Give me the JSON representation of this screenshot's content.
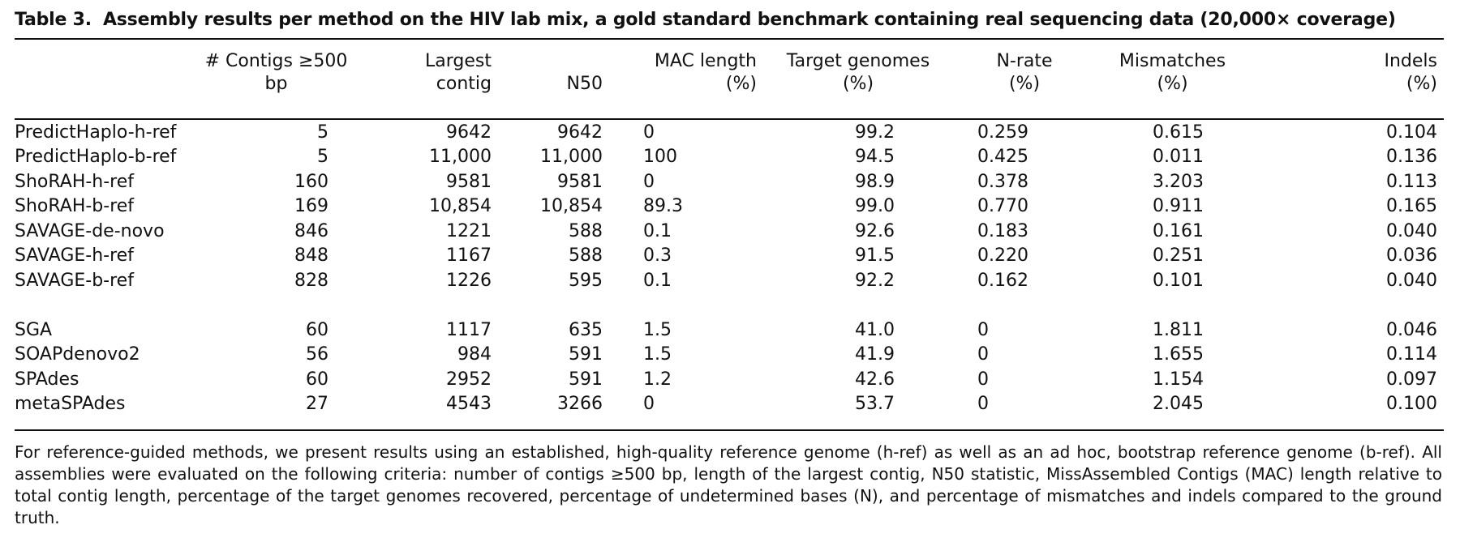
{
  "caption": {
    "label": "Table 3.",
    "text": "Assembly results per method on the HIV lab mix, a gold standard benchmark containing real sequencing data (20,000× coverage)"
  },
  "headers": [
    {
      "line1": "# Contigs ≥500",
      "line2": "bp"
    },
    {
      "line1": "Largest",
      "line2": "contig"
    },
    {
      "line1": "",
      "line2": "N50"
    },
    {
      "line1": "MAC length",
      "line2": "(%)"
    },
    {
      "line1": "Target genomes",
      "line2": "(%)"
    },
    {
      "line1": "N-rate",
      "line2": "(%)"
    },
    {
      "line1": "Mismatches",
      "line2": "(%)"
    },
    {
      "line1": "Indels",
      "line2": "(%)"
    }
  ],
  "groups": [
    {
      "rows": [
        {
          "method": "PredictHaplo-h-ref",
          "contigs": "5",
          "largest": "9642",
          "n50": "9642",
          "mac": "0",
          "target": "99.2",
          "nrate": "0.259",
          "mismatches": "0.615",
          "indels": "0.104"
        },
        {
          "method": "PredictHaplo-b-ref",
          "contigs": "5",
          "largest": "11,000",
          "n50": "11,000",
          "mac": "100",
          "target": "94.5",
          "nrate": "0.425",
          "mismatches": "0.011",
          "indels": "0.136"
        },
        {
          "method": "ShoRAH-h-ref",
          "contigs": "160",
          "largest": "9581",
          "n50": "9581",
          "mac": "0",
          "target": "98.9",
          "nrate": "0.378",
          "mismatches": "3.203",
          "indels": "0.113"
        },
        {
          "method": "ShoRAH-b-ref",
          "contigs": "169",
          "largest": "10,854",
          "n50": "10,854",
          "mac": "89.3",
          "target": "99.0",
          "nrate": "0.770",
          "mismatches": "0.911",
          "indels": "0.165"
        },
        {
          "method": "SAVAGE-de-novo",
          "contigs": "846",
          "largest": "1221",
          "n50": "588",
          "mac": "0.1",
          "target": "92.6",
          "nrate": "0.183",
          "mismatches": "0.161",
          "indels": "0.040"
        },
        {
          "method": "SAVAGE-h-ref",
          "contigs": "848",
          "largest": "1167",
          "n50": "588",
          "mac": "0.3",
          "target": "91.5",
          "nrate": "0.220",
          "mismatches": "0.251",
          "indels": "0.036"
        },
        {
          "method": "SAVAGE-b-ref",
          "contigs": "828",
          "largest": "1226",
          "n50": "595",
          "mac": "0.1",
          "target": "92.2",
          "nrate": "0.162",
          "mismatches": "0.101",
          "indels": "0.040"
        }
      ]
    },
    {
      "rows": [
        {
          "method": "SGA",
          "contigs": "60",
          "largest": "1117",
          "n50": "635",
          "mac": "1.5",
          "target": "41.0",
          "nrate": "0",
          "mismatches": "1.811",
          "indels": "0.046"
        },
        {
          "method": "SOAPdenovo2",
          "contigs": "56",
          "largest": "984",
          "n50": "591",
          "mac": "1.5",
          "target": "41.9",
          "nrate": "0",
          "mismatches": "1.655",
          "indels": "0.114"
        },
        {
          "method": "SPAdes",
          "contigs": "60",
          "largest": "2952",
          "n50": "591",
          "mac": "1.2",
          "target": "42.6",
          "nrate": "0",
          "mismatches": "1.154",
          "indels": "0.097"
        },
        {
          "method": "metaSPAdes",
          "contigs": "27",
          "largest": "4543",
          "n50": "3266",
          "mac": "0",
          "target": "53.7",
          "nrate": "0",
          "mismatches": "2.045",
          "indels": "0.100"
        }
      ]
    }
  ],
  "footnote": "For reference-guided methods, we present results using an established, high-quality reference genome (h-ref) as well as an ad hoc, bootstrap reference genome (b-ref). All assemblies were evaluated on the following criteria: number of contigs ≥500 bp, length of the largest contig, N50 statistic, MissAssembled Contigs (MAC) length relative to total contig length, percentage of the target genomes recovered, percentage of undetermined bases (N), and percentage of mismatches and indels compared to the ground truth."
}
